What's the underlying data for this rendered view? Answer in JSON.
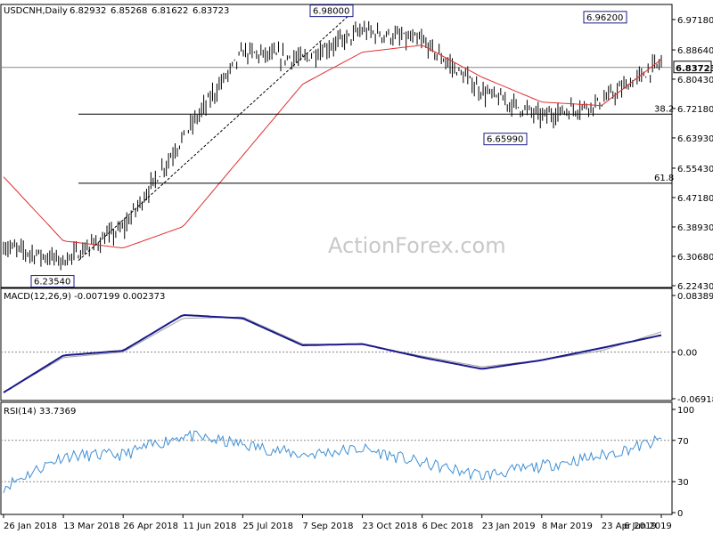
{
  "chart_data": [
    {
      "type": "candlestick",
      "title": "USDCNH,Daily",
      "ohlc": [
        "6.82932",
        "6.85268",
        "6.81622",
        "6.83723"
      ],
      "last_price": "6.83723",
      "moving_average": "red",
      "ylim": [
        6.2243,
        7.0091
      ],
      "yticks": [
        "6.97180",
        "6.88640",
        "6.80430",
        "6.72180",
        "6.63930",
        "6.55430",
        "6.47180",
        "6.38930",
        "6.30680",
        "6.22430"
      ],
      "annotations": [
        "6.98000",
        "6.96200",
        "6.65990",
        "6.23540"
      ],
      "fib_levels": [
        {
          "label": "38.2",
          "value": 6.706
        },
        {
          "label": "61.8",
          "value": 6.512
        }
      ],
      "watermark": "ActionForex.com",
      "series": [
        {
          "x": [
            "26 Jan 2018",
            "13 Mar 2018",
            "26 Apr 2018",
            "11 Jun 2018",
            "25 Jul 2018",
            "7 Sep 2018",
            "23 Oct 2018",
            "6 Dec 2018",
            "23 Jan 2019",
            "8 Mar 2019",
            "23 Apr 2019",
            "6 Jun 2019"
          ],
          "close": [
            6.335,
            6.295,
            6.385,
            6.64,
            6.88,
            6.86,
            6.94,
            6.91,
            6.77,
            6.7,
            6.74,
            6.85
          ]
        },
        {
          "x": [
            "26 Jan 2018",
            "13 Mar 2018",
            "26 Apr 2018",
            "11 Jun 2018",
            "25 Jul 2018",
            "7 Sep 2018",
            "23 Oct 2018",
            "6 Dec 2018",
            "23 Jan 2019",
            "8 Mar 2019",
            "23 Apr 2019",
            "6 Jun 2019"
          ],
          "sma": [
            6.53,
            6.35,
            6.33,
            6.39,
            6.59,
            6.79,
            6.88,
            6.9,
            6.81,
            6.74,
            6.73,
            6.86
          ]
        }
      ]
    },
    {
      "type": "line",
      "title": "MACD(12,26,9) -0.007199 0.002373",
      "ylim": [
        -0.069189,
        0.083892
      ],
      "yticks": [
        "0.083892",
        "0.00",
        "-0.069189"
      ],
      "series": [
        {
          "x": [
            "26 Jan 2018",
            "13 Mar 2018",
            "26 Apr 2018",
            "11 Jun 2018",
            "25 Jul 2018",
            "7 Sep 2018",
            "23 Oct 2018",
            "6 Dec 2018",
            "23 Jan 2019",
            "8 Mar 2019",
            "23 Apr 2019",
            "6 Jun 2019"
          ],
          "values": [
            -0.06,
            -0.005,
            0.002,
            0.055,
            0.05,
            0.01,
            0.012,
            -0.008,
            -0.025,
            -0.012,
            0.006,
            0.025
          ]
        },
        {
          "x": [
            "26 Jan 2018",
            "13 Mar 2018",
            "26 Apr 2018",
            "11 Jun 2018",
            "25 Jul 2018",
            "7 Sep 2018",
            "23 Oct 2018",
            "6 Dec 2018",
            "23 Jan 2019",
            "8 Mar 2019",
            "23 Apr 2019",
            "6 Jun 2019"
          ],
          "values": [
            -0.06,
            -0.008,
            0.0,
            0.05,
            0.052,
            0.012,
            0.011,
            -0.006,
            -0.022,
            -0.012,
            0.002,
            0.03
          ]
        }
      ]
    },
    {
      "type": "line",
      "title": "RSI(14) 33.7369",
      "ylim": [
        0,
        100
      ],
      "yticks": [
        "100",
        "70",
        "30",
        "0"
      ],
      "series": [
        {
          "x": [
            "26 Jan 2018",
            "13 Mar 2018",
            "26 Apr 2018",
            "11 Jun 2018",
            "25 Jul 2018",
            "7 Sep 2018",
            "23 Oct 2018",
            "6 Dec 2018",
            "23 Jan 2019",
            "8 Mar 2019",
            "23 Apr 2019",
            "6 Jun 2019"
          ],
          "values": [
            25,
            55,
            56,
            75,
            66,
            56,
            62,
            48,
            36,
            45,
            55,
            70
          ]
        }
      ]
    }
  ],
  "x_axis_labels": [
    "26 Jan 2018",
    "13 Mar 2018",
    "26 Apr 2018",
    "11 Jun 2018",
    "25 Jul 2018",
    "7 Sep 2018",
    "23 Oct 2018",
    "6 Dec 2018",
    "23 Jan 2019",
    "8 Mar 2019",
    "23 Apr 2019",
    "6 Jun 2019"
  ],
  "colors": {
    "price": "#000000",
    "sma": "#e03030",
    "macd": "#1a1a8c",
    "signal": "#a0a0a0",
    "rsi": "#3f8fd4",
    "grid": "#000000"
  }
}
